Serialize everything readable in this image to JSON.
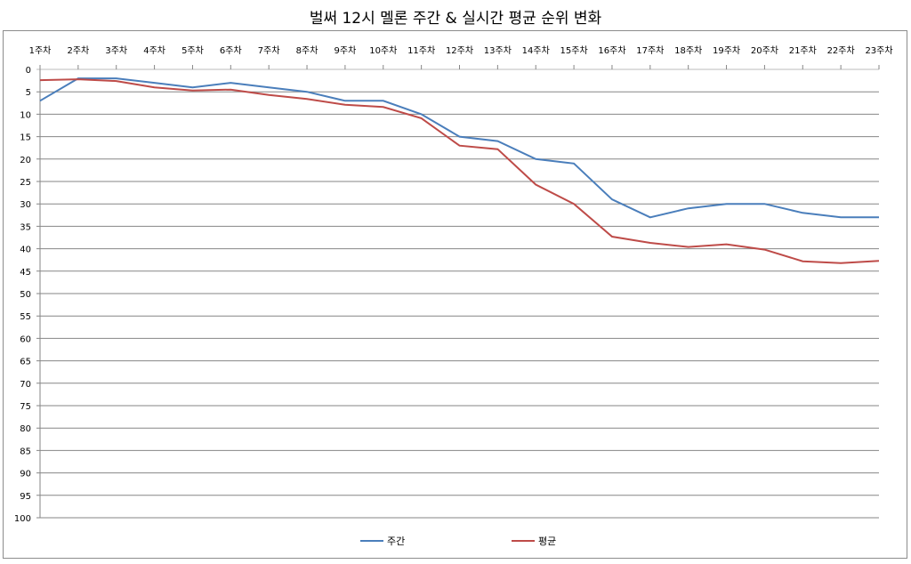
{
  "chart_data": {
    "type": "line",
    "title": "벌써 12시 멜론 주간 & 실시간 평균 순위 변화",
    "xlabel": "",
    "ylabel": "",
    "categories": [
      "1주차",
      "2주차",
      "3주차",
      "4주차",
      "5주차",
      "6주차",
      "7주차",
      "8주차",
      "9주차",
      "10주차",
      "11주차",
      "12주차",
      "13주차",
      "14주차",
      "15주차",
      "16주차",
      "17주차",
      "18주차",
      "19주차",
      "20주차",
      "21주차",
      "22주차",
      "23주차"
    ],
    "ylim": [
      0,
      100
    ],
    "y_reversed": true,
    "yticks": [
      0,
      5,
      10,
      15,
      20,
      25,
      30,
      35,
      40,
      45,
      50,
      55,
      60,
      65,
      70,
      75,
      80,
      85,
      90,
      95,
      100
    ],
    "grid": true,
    "legend_position": "bottom",
    "series": [
      {
        "name": "주간",
        "color": "#4a7ebb",
        "values": [
          7,
          2,
          2,
          3,
          4,
          3,
          4,
          5,
          7,
          7,
          10,
          15,
          16,
          20,
          21,
          29,
          33,
          31,
          30,
          30,
          32,
          33,
          33
        ]
      },
      {
        "name": "평균",
        "color": "#be4b48",
        "values": [
          2.4,
          2.2,
          2.6,
          4,
          4.7,
          4.5,
          5.7,
          6.6,
          7.9,
          8.4,
          10.9,
          17,
          17.8,
          25.7,
          30,
          37.3,
          38.7,
          39.6,
          39,
          40.2,
          42.8,
          43.2,
          42.7
        ]
      }
    ]
  }
}
